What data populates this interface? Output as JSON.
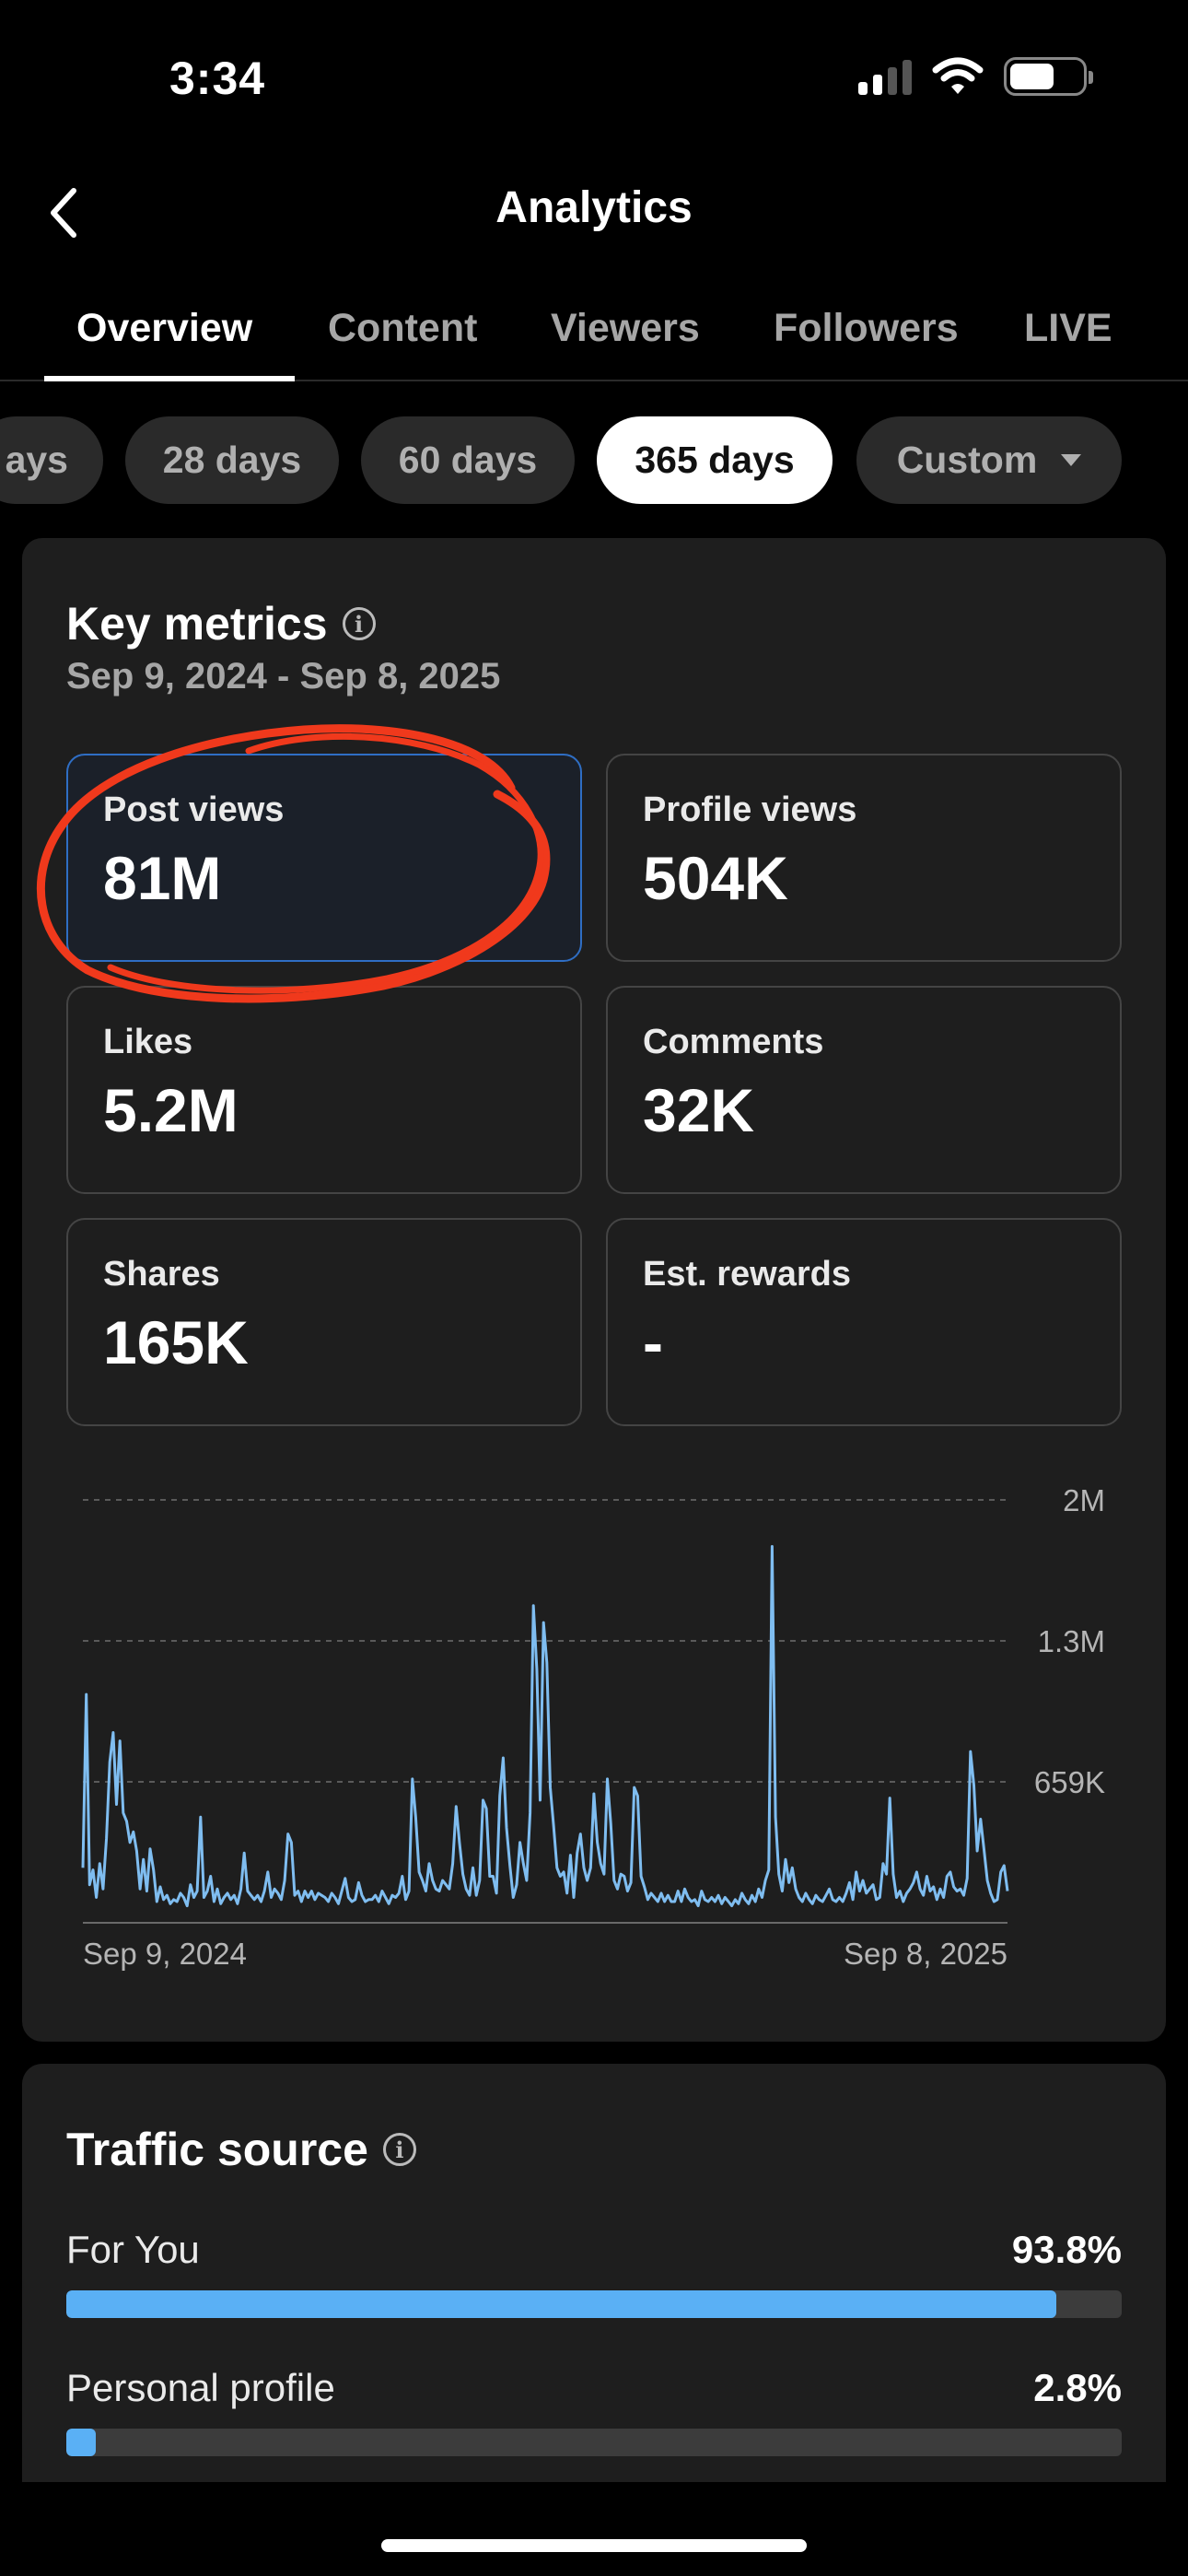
{
  "status_bar": {
    "time": "3:34"
  },
  "header": {
    "title": "Analytics",
    "back_icon": "chevron-left-icon"
  },
  "tabs": [
    {
      "label": "Overview",
      "active": true
    },
    {
      "label": "Content"
    },
    {
      "label": "Viewers"
    },
    {
      "label": "Followers"
    },
    {
      "label": "LIVE"
    }
  ],
  "ranges": [
    {
      "label": "ays"
    },
    {
      "label": "28 days"
    },
    {
      "label": "60 days"
    },
    {
      "label": "365 days",
      "active": true
    },
    {
      "label": "Custom"
    }
  ],
  "key_metrics": {
    "title": "Key metrics",
    "date_range": "Sep 9, 2024 - Sep 8, 2025",
    "metrics": [
      {
        "label": "Post views",
        "value": "81M",
        "selected": true
      },
      {
        "label": "Profile views",
        "value": "504K"
      },
      {
        "label": "Likes",
        "value": "5.2M"
      },
      {
        "label": "Comments",
        "value": "32K"
      },
      {
        "label": "Shares",
        "value": "165K"
      },
      {
        "label": "Est. rewards",
        "value": "-"
      }
    ]
  },
  "chart_data": {
    "type": "line",
    "title": "",
    "xlabel": "",
    "ylabel": "",
    "x_start": "Sep 9, 2024",
    "x_end": "Sep 8, 2025",
    "y_ticks": [
      "2M",
      "1.3M",
      "659K"
    ],
    "ylim": [
      0,
      2000000
    ],
    "color": "#7fbdf0",
    "series": [
      {
        "values": [
          260000,
          1080000,
          180000,
          250000,
          120000,
          280000,
          160000,
          400000,
          760000,
          900000,
          560000,
          860000,
          520000,
          480000,
          380000,
          430000,
          340000,
          160000,
          300000,
          150000,
          350000,
          250000,
          100000,
          170000,
          110000,
          130000,
          90000,
          110000,
          100000,
          140000,
          120000,
          80000,
          180000,
          120000,
          150000,
          500000,
          120000,
          150000,
          220000,
          100000,
          160000,
          90000,
          120000,
          140000,
          110000,
          130000,
          90000,
          160000,
          330000,
          150000,
          130000,
          110000,
          130000,
          100000,
          150000,
          240000,
          120000,
          160000,
          140000,
          110000,
          200000,
          420000,
          380000,
          130000,
          150000,
          100000,
          150000,
          120000,
          150000,
          110000,
          140000,
          130000,
          120000,
          100000,
          140000,
          120000,
          90000,
          150000,
          210000,
          120000,
          100000,
          110000,
          190000,
          130000,
          100000,
          110000,
          110000,
          130000,
          100000,
          150000,
          120000,
          90000,
          130000,
          120000,
          140000,
          220000,
          110000,
          150000,
          680000,
          500000,
          240000,
          200000,
          150000,
          280000,
          200000,
          160000,
          150000,
          200000,
          180000,
          160000,
          280000,
          550000,
          380000,
          230000,
          160000,
          130000,
          260000,
          130000,
          200000,
          580000,
          540000,
          220000,
          220000,
          140000,
          600000,
          780000,
          450000,
          270000,
          120000,
          180000,
          380000,
          280000,
          200000,
          520000,
          1500000,
          1200000,
          580000,
          1420000,
          1230000,
          640000,
          460000,
          260000,
          220000,
          240000,
          140000,
          320000,
          120000,
          330000,
          420000,
          260000,
          200000,
          260000,
          610000,
          380000,
          280000,
          230000,
          680000,
          470000,
          200000,
          160000,
          230000,
          220000,
          150000,
          190000,
          640000,
          600000,
          220000,
          170000,
          110000,
          140000,
          120000,
          100000,
          140000,
          100000,
          130000,
          100000,
          100000,
          150000,
          100000,
          160000,
          120000,
          100000,
          110000,
          80000,
          150000,
          110000,
          100000,
          120000,
          100000,
          130000,
          90000,
          120000,
          100000,
          80000,
          110000,
          90000,
          140000,
          110000,
          90000,
          130000,
          100000,
          160000,
          120000,
          200000,
          250000,
          1780000,
          500000,
          230000,
          150000,
          300000,
          190000,
          260000,
          160000,
          120000,
          100000,
          140000,
          110000,
          90000,
          130000,
          110000,
          100000,
          130000,
          160000,
          110000,
          100000,
          120000,
          100000,
          140000,
          190000,
          110000,
          240000,
          150000,
          200000,
          140000,
          160000,
          180000,
          110000,
          120000,
          280000,
          230000,
          590000,
          230000,
          120000,
          150000,
          100000,
          140000,
          160000,
          190000,
          240000,
          160000,
          130000,
          220000,
          150000,
          170000,
          110000,
          160000,
          120000,
          220000,
          240000,
          170000,
          150000,
          160000,
          130000,
          210000,
          810000,
          650000,
          340000,
          490000,
          350000,
          200000,
          140000,
          100000,
          110000,
          240000,
          270000,
          150000
        ]
      }
    ]
  },
  "traffic_source": {
    "title": "Traffic source",
    "rows": [
      {
        "label": "For You",
        "value": "93.8%",
        "fraction": 0.938
      },
      {
        "label": "Personal profile",
        "value": "2.8%",
        "fraction": 0.028
      }
    ]
  }
}
